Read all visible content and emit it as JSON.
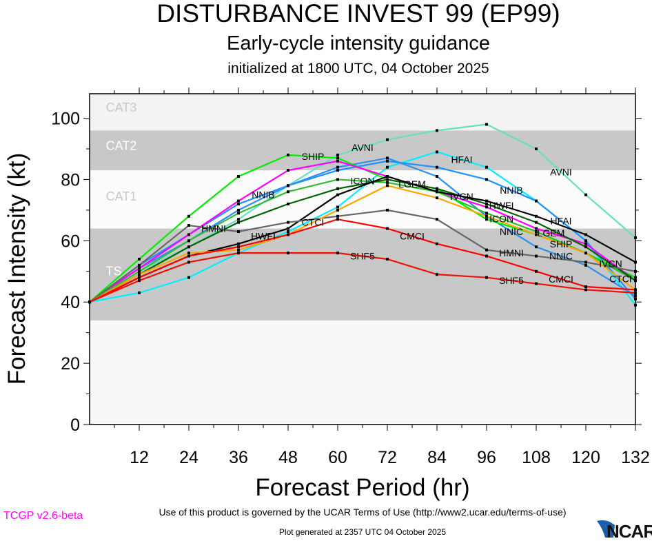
{
  "title": "DISTURBANCE INVEST 99 (EP99)",
  "subtitle": "Early-cycle intensity guidance",
  "init_line": "initialized at 1800 UTC, 04 October 2025",
  "footer": {
    "terms": "Use of this product is governed by the UCAR Terms of Use (http://www2.ucar.edu/terms-of-use)",
    "version": "TCGP v2.6-beta",
    "generated": "Plot generated at 2357 UTC   04 October 2025",
    "logo_text": "NCAR"
  },
  "chart_data": {
    "type": "line",
    "xlabel": "Forecast Period (hr)",
    "ylabel": "Forecast Intensity (kt)",
    "xlim": [
      0,
      132
    ],
    "ylim": [
      0,
      108
    ],
    "xticks": [
      12,
      24,
      36,
      48,
      60,
      72,
      84,
      96,
      108,
      120,
      132
    ],
    "yticks": [
      0,
      20,
      40,
      60,
      80,
      100
    ],
    "bands": [
      {
        "label": "TS",
        "from": 34,
        "to": 64,
        "color": "#c8c8c8"
      },
      {
        "label": "CAT1",
        "from": 64,
        "to": 83,
        "color": "#fbfbfb"
      },
      {
        "label": "CAT2",
        "from": 83,
        "to": 96,
        "color": "#c8c8c8"
      },
      {
        "label": "CAT3",
        "from": 96,
        "to": 108,
        "color": "#f3f3f3"
      }
    ],
    "below_band_color": "#f7f7f7",
    "x": [
      0,
      12,
      24,
      36,
      48,
      60,
      72,
      84,
      96,
      108,
      120,
      132
    ],
    "series": [
      {
        "name": "AVNI",
        "color": "#66e0c0",
        "values": [
          40,
          50,
          58,
          67,
          78,
          88,
          93,
          96,
          98,
          90,
          75,
          61
        ]
      },
      {
        "name": "HFAI",
        "color": "#00eeff",
        "values": [
          40,
          43,
          48,
          56,
          63,
          71,
          84,
          89,
          84,
          73,
          60,
          39
        ]
      },
      {
        "name": "NNIB",
        "color": "#1e90ff",
        "values": [
          40,
          52,
          62,
          72,
          78,
          83,
          86,
          84,
          80,
          73,
          60,
          41
        ]
      },
      {
        "name": "NNIC",
        "color": "#2e8fef",
        "values": [
          40,
          51,
          60,
          70,
          78,
          84,
          87,
          81,
          68,
          58,
          52,
          42
        ]
      },
      {
        "name": "SHIP",
        "color": "#00ee00",
        "values": [
          40,
          54,
          68,
          81,
          88,
          87,
          80,
          77,
          67,
          62,
          56,
          48
        ]
      },
      {
        "name": "LGEM",
        "color": "#ff00ff",
        "values": [
          40,
          51,
          62,
          73,
          83,
          86,
          81,
          76,
          71,
          64,
          59,
          47
        ]
      },
      {
        "name": "ICON",
        "color": "#33bb33",
        "values": [
          40,
          50,
          60,
          69,
          76,
          80,
          79,
          76,
          69,
          63,
          56,
          47
        ]
      },
      {
        "name": "IVCN",
        "color": "#006400",
        "values": [
          40,
          49,
          58,
          66,
          72,
          77,
          80,
          77,
          72,
          66,
          58,
          47
        ]
      },
      {
        "name": "HWFI",
        "color": "#000000",
        "values": [
          40,
          48,
          55,
          59,
          64,
          75,
          81,
          76,
          73,
          68,
          62,
          53
        ]
      },
      {
        "name": "HMNI",
        "color": "#666666",
        "values": [
          40,
          52,
          65,
          63,
          66,
          68,
          70,
          67,
          57,
          55,
          53,
          50
        ]
      },
      {
        "name": "CTCI",
        "color": "#ffa500",
        "values": [
          40,
          49,
          56,
          57,
          62,
          70,
          78,
          74,
          68,
          62,
          56,
          44
        ]
      },
      {
        "name": "CMCI",
        "color": "#ff0000",
        "values": [
          40,
          48,
          55,
          58,
          62,
          67,
          64,
          59,
          55,
          50,
          45,
          44
        ]
      },
      {
        "name": "SHF5",
        "color": "#ee1100",
        "values": [
          40,
          47,
          53,
          56,
          56,
          56,
          54,
          49,
          48,
          46,
          44,
          43
        ]
      }
    ]
  }
}
